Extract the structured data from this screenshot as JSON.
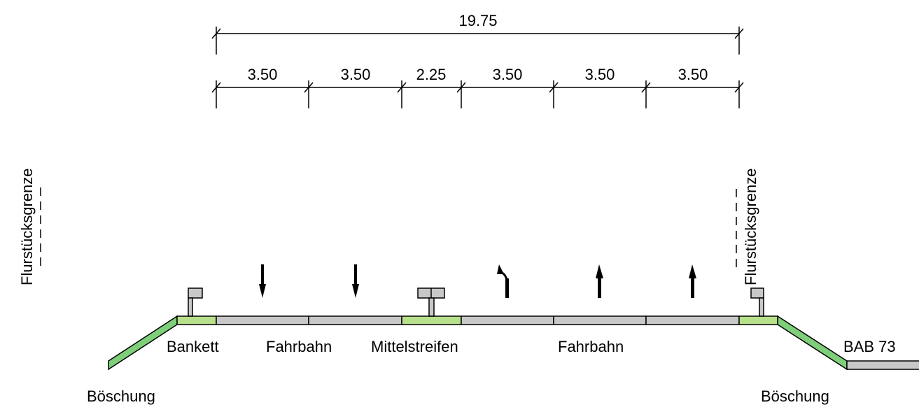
{
  "dimensions": {
    "total": "19.75",
    "segments": [
      "3.50",
      "3.50",
      "2.25",
      "3.50",
      "3.50",
      "3.50"
    ]
  },
  "labels": {
    "bankett": "Bankett",
    "fahrbahn_left": "Fahrbahn",
    "mittelstreifen": "Mittelstreifen",
    "fahrbahn_right": "Fahrbahn",
    "bab": "BAB 73",
    "boeschung_left": "Böschung",
    "boeschung_right": "Böschung",
    "flurstueck_left": "Flurstücksgrenze",
    "flurstueck_right": "Flurstücksgrenze"
  },
  "colors": {
    "verge": "#b8e08a",
    "slope": "#7fcf7a",
    "lane": "#c8c8c8",
    "line": "#000000"
  }
}
